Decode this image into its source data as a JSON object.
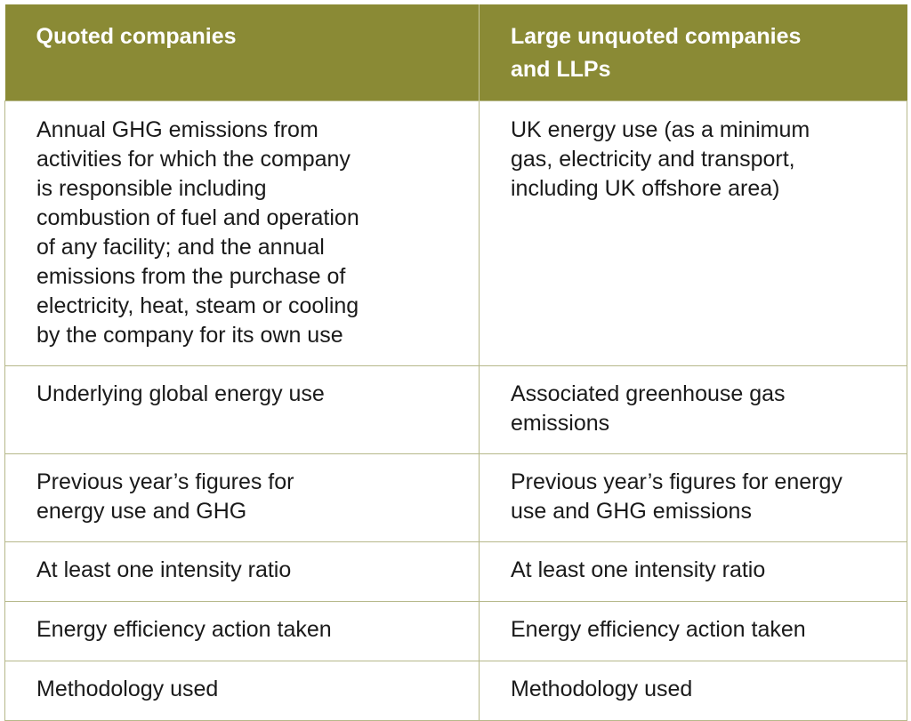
{
  "header": {
    "col1": "Quoted companies",
    "col2": "Large unquoted companies\nand LLPs"
  },
  "rows": [
    {
      "col1": "Annual GHG emissions from\nactivities for which the company\nis responsible including\ncombustion of fuel and operation\nof any facility; and the annual\nemissions from the purchase of\nelectricity, heat, steam or cooling\nby the company for its own use",
      "col2": "UK energy use (as a minimum\ngas, electricity and transport,\nincluding UK offshore area)"
    },
    {
      "col1": "Underlying global energy use",
      "col2": "Associated greenhouse gas\nemissions"
    },
    {
      "col1": "Previous year’s figures for\nenergy use and GHG",
      "col2": "Previous year’s figures for energy\nuse and GHG emissions"
    },
    {
      "col1": "At least one intensity ratio",
      "col2": "At least one intensity ratio"
    },
    {
      "col1": "Energy efficiency action taken",
      "col2": "Energy efficiency action taken"
    },
    {
      "col1": "Methodology used",
      "col2": "Methodology used"
    }
  ],
  "colors": {
    "header_bg": "#8a8a35",
    "header_text": "#ffffff",
    "border": "#b6b88a"
  }
}
